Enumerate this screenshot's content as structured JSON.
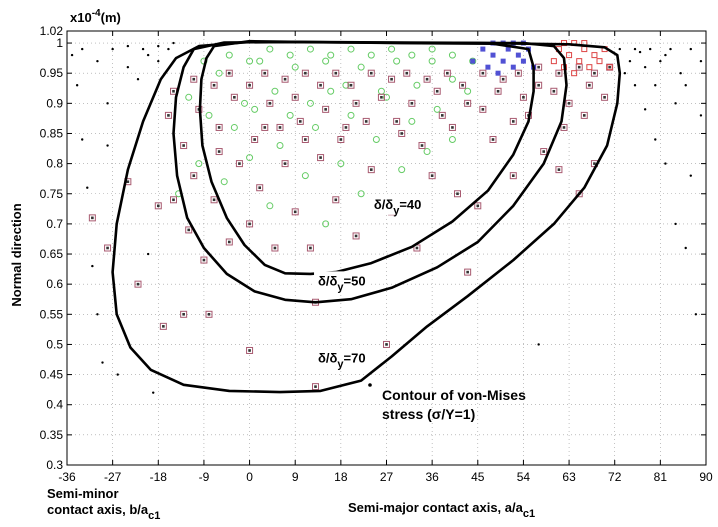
{
  "chart_data": {
    "type": "scatter",
    "multiplier_label": "x10",
    "multiplier_exp": "-4",
    "multiplier_unit": "(m)",
    "ylabel": "Normal direction",
    "xlabel_right": "Semi-major contact axis, a/a",
    "xlabel_right_sub": "c1",
    "xlabel_left_line1": "Semi-minor",
    "xlabel_left_line2": "contact axis, b/a",
    "xlabel_left_sub": "c1",
    "xlim": [
      -36,
      90
    ],
    "ylim": [
      0.3,
      1.02
    ],
    "x_ticks": [
      "-36",
      "-27",
      "-18",
      "-9",
      "0",
      "9",
      "18",
      "27",
      "36",
      "45",
      "54",
      "63",
      "72",
      "81",
      "90"
    ],
    "y_ticks": [
      "0.3",
      "0.35",
      "0.4",
      "0.45",
      "0.5",
      "0.55",
      "0.6",
      "0.65",
      "0.7",
      "0.75",
      "0.8",
      "0.85",
      "0.9",
      "0.95",
      "1",
      "1.02"
    ],
    "grid": true,
    "legend": {
      "line1": "Contour of von-Mises",
      "line2": "stress (σ/Y=1)",
      "placement": "bottom-right"
    },
    "colors": {
      "contour": "#000000",
      "square_marker": "#a85a70",
      "circle_marker": "#66cc66",
      "blue_cluster": "#3333cc",
      "red_cluster": "#dd4444",
      "dot": "#000000"
    },
    "contours": [
      {
        "label_pre": "δ/δ",
        "label_sub": "y",
        "label_post": "=40",
        "label_at": [
          24.5,
          0.725
        ],
        "points": [
          [
            -7,
            0.995
          ],
          [
            -8.5,
            0.975
          ],
          [
            -9.5,
            0.94
          ],
          [
            -9.8,
            0.89
          ],
          [
            -9.3,
            0.83
          ],
          [
            -7.5,
            0.77
          ],
          [
            -4.5,
            0.71
          ],
          [
            -1,
            0.665
          ],
          [
            3,
            0.632
          ],
          [
            7,
            0.618
          ],
          [
            12,
            0.617
          ],
          [
            17,
            0.62
          ],
          [
            24,
            0.635
          ],
          [
            32,
            0.662
          ],
          [
            40,
            0.704
          ],
          [
            47,
            0.755
          ],
          [
            52,
            0.815
          ],
          [
            55,
            0.87
          ],
          [
            56,
            0.92
          ],
          [
            56,
            0.96
          ],
          [
            55,
            0.99
          ],
          [
            48,
            0.999
          ],
          [
            30,
            1
          ],
          [
            10,
            1.002
          ],
          [
            0,
            1.003
          ],
          [
            -7,
            0.995
          ]
        ]
      },
      {
        "label_pre": "δ/δ",
        "label_sub": "y",
        "label_post": "=50",
        "label_at": [
          13.5,
          0.598
        ],
        "points": [
          [
            -11,
            0.99
          ],
          [
            -13,
            0.96
          ],
          [
            -14.5,
            0.91
          ],
          [
            -15,
            0.85
          ],
          [
            -14.3,
            0.78
          ],
          [
            -12.3,
            0.71
          ],
          [
            -9,
            0.66
          ],
          [
            -4.5,
            0.617
          ],
          [
            1,
            0.588
          ],
          [
            7,
            0.574
          ],
          [
            13,
            0.57
          ],
          [
            20,
            0.575
          ],
          [
            28,
            0.594
          ],
          [
            37,
            0.628
          ],
          [
            45,
            0.67
          ],
          [
            52,
            0.73
          ],
          [
            58,
            0.8
          ],
          [
            61.5,
            0.87
          ],
          [
            62.5,
            0.93
          ],
          [
            62,
            0.975
          ],
          [
            60,
            0.995
          ],
          [
            54,
            1
          ],
          [
            30,
            1.001
          ],
          [
            10,
            1.002
          ],
          [
            -5,
            1.001
          ],
          [
            -11,
            0.99
          ]
        ]
      },
      {
        "label_pre": "δ/δ",
        "label_sub": "y",
        "label_post": "=70",
        "label_at": [
          13.5,
          0.47
        ],
        "points": [
          [
            -14.5,
            0.975
          ],
          [
            -17.5,
            0.94
          ],
          [
            -21,
            0.87
          ],
          [
            -24,
            0.79
          ],
          [
            -26.2,
            0.7
          ],
          [
            -27,
            0.62
          ],
          [
            -26.2,
            0.55
          ],
          [
            -23.5,
            0.495
          ],
          [
            -19.5,
            0.458
          ],
          [
            -13,
            0.433
          ],
          [
            -4,
            0.423
          ],
          [
            6,
            0.421
          ],
          [
            14,
            0.423
          ],
          [
            22,
            0.44
          ],
          [
            28,
            0.48
          ],
          [
            35,
            0.53
          ],
          [
            43,
            0.58
          ],
          [
            52,
            0.64
          ],
          [
            60,
            0.7
          ],
          [
            66,
            0.76
          ],
          [
            70.5,
            0.83
          ],
          [
            72.5,
            0.9
          ],
          [
            73,
            0.95
          ],
          [
            72.5,
            0.98
          ],
          [
            70,
            0.993
          ],
          [
            63,
            0.998
          ],
          [
            45,
            1
          ],
          [
            20,
            1.001
          ],
          [
            0,
            1.002
          ],
          [
            -10,
            0.995
          ],
          [
            -14.5,
            0.975
          ]
        ]
      }
    ],
    "square_points": [
      [
        -31,
        0.71
      ],
      [
        -28,
        0.66
      ],
      [
        -24,
        0.77
      ],
      [
        -22,
        0.6
      ],
      [
        -18,
        0.73
      ],
      [
        -17,
        0.53
      ],
      [
        -15,
        0.74
      ],
      [
        -13,
        0.55
      ],
      [
        -12,
        0.69
      ],
      [
        -11,
        0.78
      ],
      [
        -9,
        0.64
      ],
      [
        -8,
        0.55
      ],
      [
        -7,
        0.74
      ],
      [
        -6,
        0.82
      ],
      [
        -4,
        0.67
      ],
      [
        -2,
        0.8
      ],
      [
        0,
        0.49
      ],
      [
        0,
        0.7
      ],
      [
        2,
        0.76
      ],
      [
        3,
        0.86
      ],
      [
        5,
        0.66
      ],
      [
        7,
        0.8
      ],
      [
        9,
        0.72
      ],
      [
        10,
        0.87
      ],
      [
        12,
        0.66
      ],
      [
        13,
        0.43
      ],
      [
        13,
        0.57
      ],
      [
        14,
        0.81
      ],
      [
        17,
        0.74
      ],
      [
        19,
        0.86
      ],
      [
        21,
        0.68
      ],
      [
        24,
        0.79
      ],
      [
        27,
        0.5
      ],
      [
        28,
        0.72
      ],
      [
        30,
        0.85
      ],
      [
        33,
        0.66
      ],
      [
        36,
        0.78
      ],
      [
        38,
        0.88
      ],
      [
        41,
        0.75
      ],
      [
        43,
        0.62
      ],
      [
        45,
        0.73
      ],
      [
        48,
        0.84
      ],
      [
        52,
        0.78
      ],
      [
        55,
        0.88
      ],
      [
        58,
        0.82
      ],
      [
        61,
        0.79
      ],
      [
        62,
        0.86
      ],
      [
        65,
        0.75
      ],
      [
        66,
        0.88
      ],
      [
        68,
        0.8
      ],
      [
        -16,
        0.88
      ],
      [
        -13,
        0.83
      ],
      [
        -10,
        0.89
      ],
      [
        -6,
        0.86
      ],
      [
        -3,
        0.91
      ],
      [
        1,
        0.84
      ],
      [
        4,
        0.9
      ],
      [
        6,
        0.86
      ],
      [
        9,
        0.91
      ],
      [
        11,
        0.84
      ],
      [
        15,
        0.89
      ],
      [
        18,
        0.84
      ],
      [
        21,
        0.9
      ],
      [
        23,
        0.87
      ],
      [
        26,
        0.91
      ],
      [
        29,
        0.87
      ],
      [
        32,
        0.9
      ],
      [
        34,
        0.83
      ],
      [
        37,
        0.92
      ],
      [
        40,
        0.86
      ],
      [
        43,
        0.9
      ],
      [
        46,
        0.89
      ],
      [
        49,
        0.92
      ],
      [
        52,
        0.87
      ],
      [
        54,
        0.91
      ],
      [
        57,
        0.93
      ],
      [
        60,
        0.92
      ],
      [
        63,
        0.9
      ],
      [
        67,
        0.93
      ],
      [
        70,
        0.91
      ],
      [
        -15,
        0.92
      ],
      [
        -11,
        0.94
      ],
      [
        -7,
        0.93
      ],
      [
        -4,
        0.95
      ],
      [
        0,
        0.93
      ],
      [
        3,
        0.95
      ],
      [
        7,
        0.94
      ],
      [
        11,
        0.95
      ],
      [
        14,
        0.93
      ],
      [
        17,
        0.95
      ],
      [
        20,
        0.93
      ],
      [
        24,
        0.95
      ],
      [
        28,
        0.94
      ],
      [
        31,
        0.95
      ],
      [
        35,
        0.94
      ],
      [
        39,
        0.95
      ],
      [
        42,
        0.93
      ],
      [
        46,
        0.95
      ],
      [
        50,
        0.94
      ],
      [
        53,
        0.95
      ],
      [
        57,
        0.96
      ],
      [
        61,
        0.95
      ],
      [
        65,
        0.96
      ],
      [
        68,
        0.95
      ],
      [
        71,
        0.96
      ]
    ],
    "circle_points": [
      [
        -14,
        0.75
      ],
      [
        -10,
        0.8
      ],
      [
        -8,
        0.88
      ],
      [
        -5,
        0.77
      ],
      [
        -3,
        0.86
      ],
      [
        0,
        0.81
      ],
      [
        1,
        0.89
      ],
      [
        4,
        0.73
      ],
      [
        6,
        0.83
      ],
      [
        8,
        0.88
      ],
      [
        11,
        0.78
      ],
      [
        13,
        0.86
      ],
      [
        15,
        0.7
      ],
      [
        16,
        0.92
      ],
      [
        18,
        0.8
      ],
      [
        20,
        0.88
      ],
      [
        22,
        0.75
      ],
      [
        25,
        0.84
      ],
      [
        27,
        0.91
      ],
      [
        30,
        0.79
      ],
      [
        32,
        0.87
      ],
      [
        35,
        0.82
      ],
      [
        37,
        0.89
      ],
      [
        40,
        0.84
      ],
      [
        43,
        0.92
      ],
      [
        -12,
        0.91
      ],
      [
        -6,
        0.95
      ],
      [
        -1,
        0.9
      ],
      [
        2,
        0.97
      ],
      [
        5,
        0.92
      ],
      [
        9,
        0.96
      ],
      [
        12,
        0.9
      ],
      [
        15,
        0.97
      ],
      [
        19,
        0.93
      ],
      [
        22,
        0.96
      ],
      [
        26,
        0.92
      ],
      [
        29,
        0.97
      ],
      [
        33,
        0.93
      ],
      [
        36,
        0.97
      ],
      [
        40,
        0.94
      ],
      [
        44,
        0.97
      ],
      [
        -9,
        0.97
      ],
      [
        -4,
        0.98
      ],
      [
        0,
        0.97
      ],
      [
        4,
        0.99
      ],
      [
        8,
        0.98
      ],
      [
        12,
        0.99
      ],
      [
        16,
        0.98
      ],
      [
        20,
        0.99
      ],
      [
        24,
        0.98
      ],
      [
        28,
        0.99
      ],
      [
        32,
        0.98
      ],
      [
        36,
        0.99
      ],
      [
        40,
        0.98
      ]
    ],
    "blue_points": [
      [
        44,
        0.97
      ],
      [
        46,
        0.99
      ],
      [
        47,
        0.96
      ],
      [
        48,
        0.98
      ],
      [
        49,
        0.95
      ],
      [
        50,
        0.97
      ],
      [
        51,
        0.99
      ],
      [
        52,
        0.96
      ],
      [
        53,
        0.98
      ],
      [
        54,
        0.97
      ],
      [
        55,
        0.99
      ],
      [
        56,
        0.96
      ],
      [
        48,
        1
      ],
      [
        50,
        1
      ],
      [
        52,
        1
      ],
      [
        54,
        1
      ]
    ],
    "red_points": [
      [
        60,
        0.97
      ],
      [
        61,
        0.99
      ],
      [
        62,
        0.96
      ],
      [
        63,
        0.98
      ],
      [
        64,
        0.95
      ],
      [
        65,
        0.97
      ],
      [
        66,
        0.99
      ],
      [
        67,
        0.96
      ],
      [
        68,
        0.98
      ],
      [
        69,
        0.97
      ],
      [
        70,
        0.99
      ],
      [
        71,
        0.96
      ],
      [
        62,
        1
      ],
      [
        64,
        1
      ],
      [
        66,
        1
      ]
    ],
    "dot_points": [
      [
        -34,
        0.93
      ],
      [
        -33,
        0.84
      ],
      [
        -32,
        0.76
      ],
      [
        -31,
        0.63
      ],
      [
        -30,
        0.55
      ],
      [
        -29,
        0.47
      ],
      [
        -28,
        0.9
      ],
      [
        -26,
        0.45
      ],
      [
        -24,
        0.96
      ],
      [
        -22,
        0.94
      ],
      [
        -20,
        0.98
      ],
      [
        -19,
        0.42
      ],
      [
        -18,
        0.97
      ],
      [
        -16,
        0.99
      ],
      [
        -35,
        0.98
      ],
      [
        -33,
        0.99
      ],
      [
        -30,
        0.97
      ],
      [
        -27,
        0.99
      ],
      [
        -24,
        0.995
      ],
      [
        -21,
        0.99
      ],
      [
        -18,
        0.995
      ],
      [
        -15,
        1
      ],
      [
        73,
        0.99
      ],
      [
        75,
        0.97
      ],
      [
        76,
        0.93
      ],
      [
        77,
        0.985
      ],
      [
        78,
        0.89
      ],
      [
        79,
        0.99
      ],
      [
        80,
        0.84
      ],
      [
        81,
        0.97
      ],
      [
        82,
        0.8
      ],
      [
        83,
        0.99
      ],
      [
        84,
        0.7
      ],
      [
        85,
        0.95
      ],
      [
        86,
        0.66
      ],
      [
        87,
        0.99
      ],
      [
        88,
        0.55
      ],
      [
        89,
        0.97
      ],
      [
        89,
        0.88
      ],
      [
        87,
        0.78
      ],
      [
        84,
        0.9
      ],
      [
        80,
        0.93
      ],
      [
        76,
        0.99
      ],
      [
        78,
        0.96
      ],
      [
        82,
        0.98
      ],
      [
        86,
        0.93
      ],
      [
        74,
        0.95
      ],
      [
        57,
        0.5
      ],
      [
        -20,
        0.65
      ],
      [
        -28,
        0.83
      ]
    ]
  }
}
